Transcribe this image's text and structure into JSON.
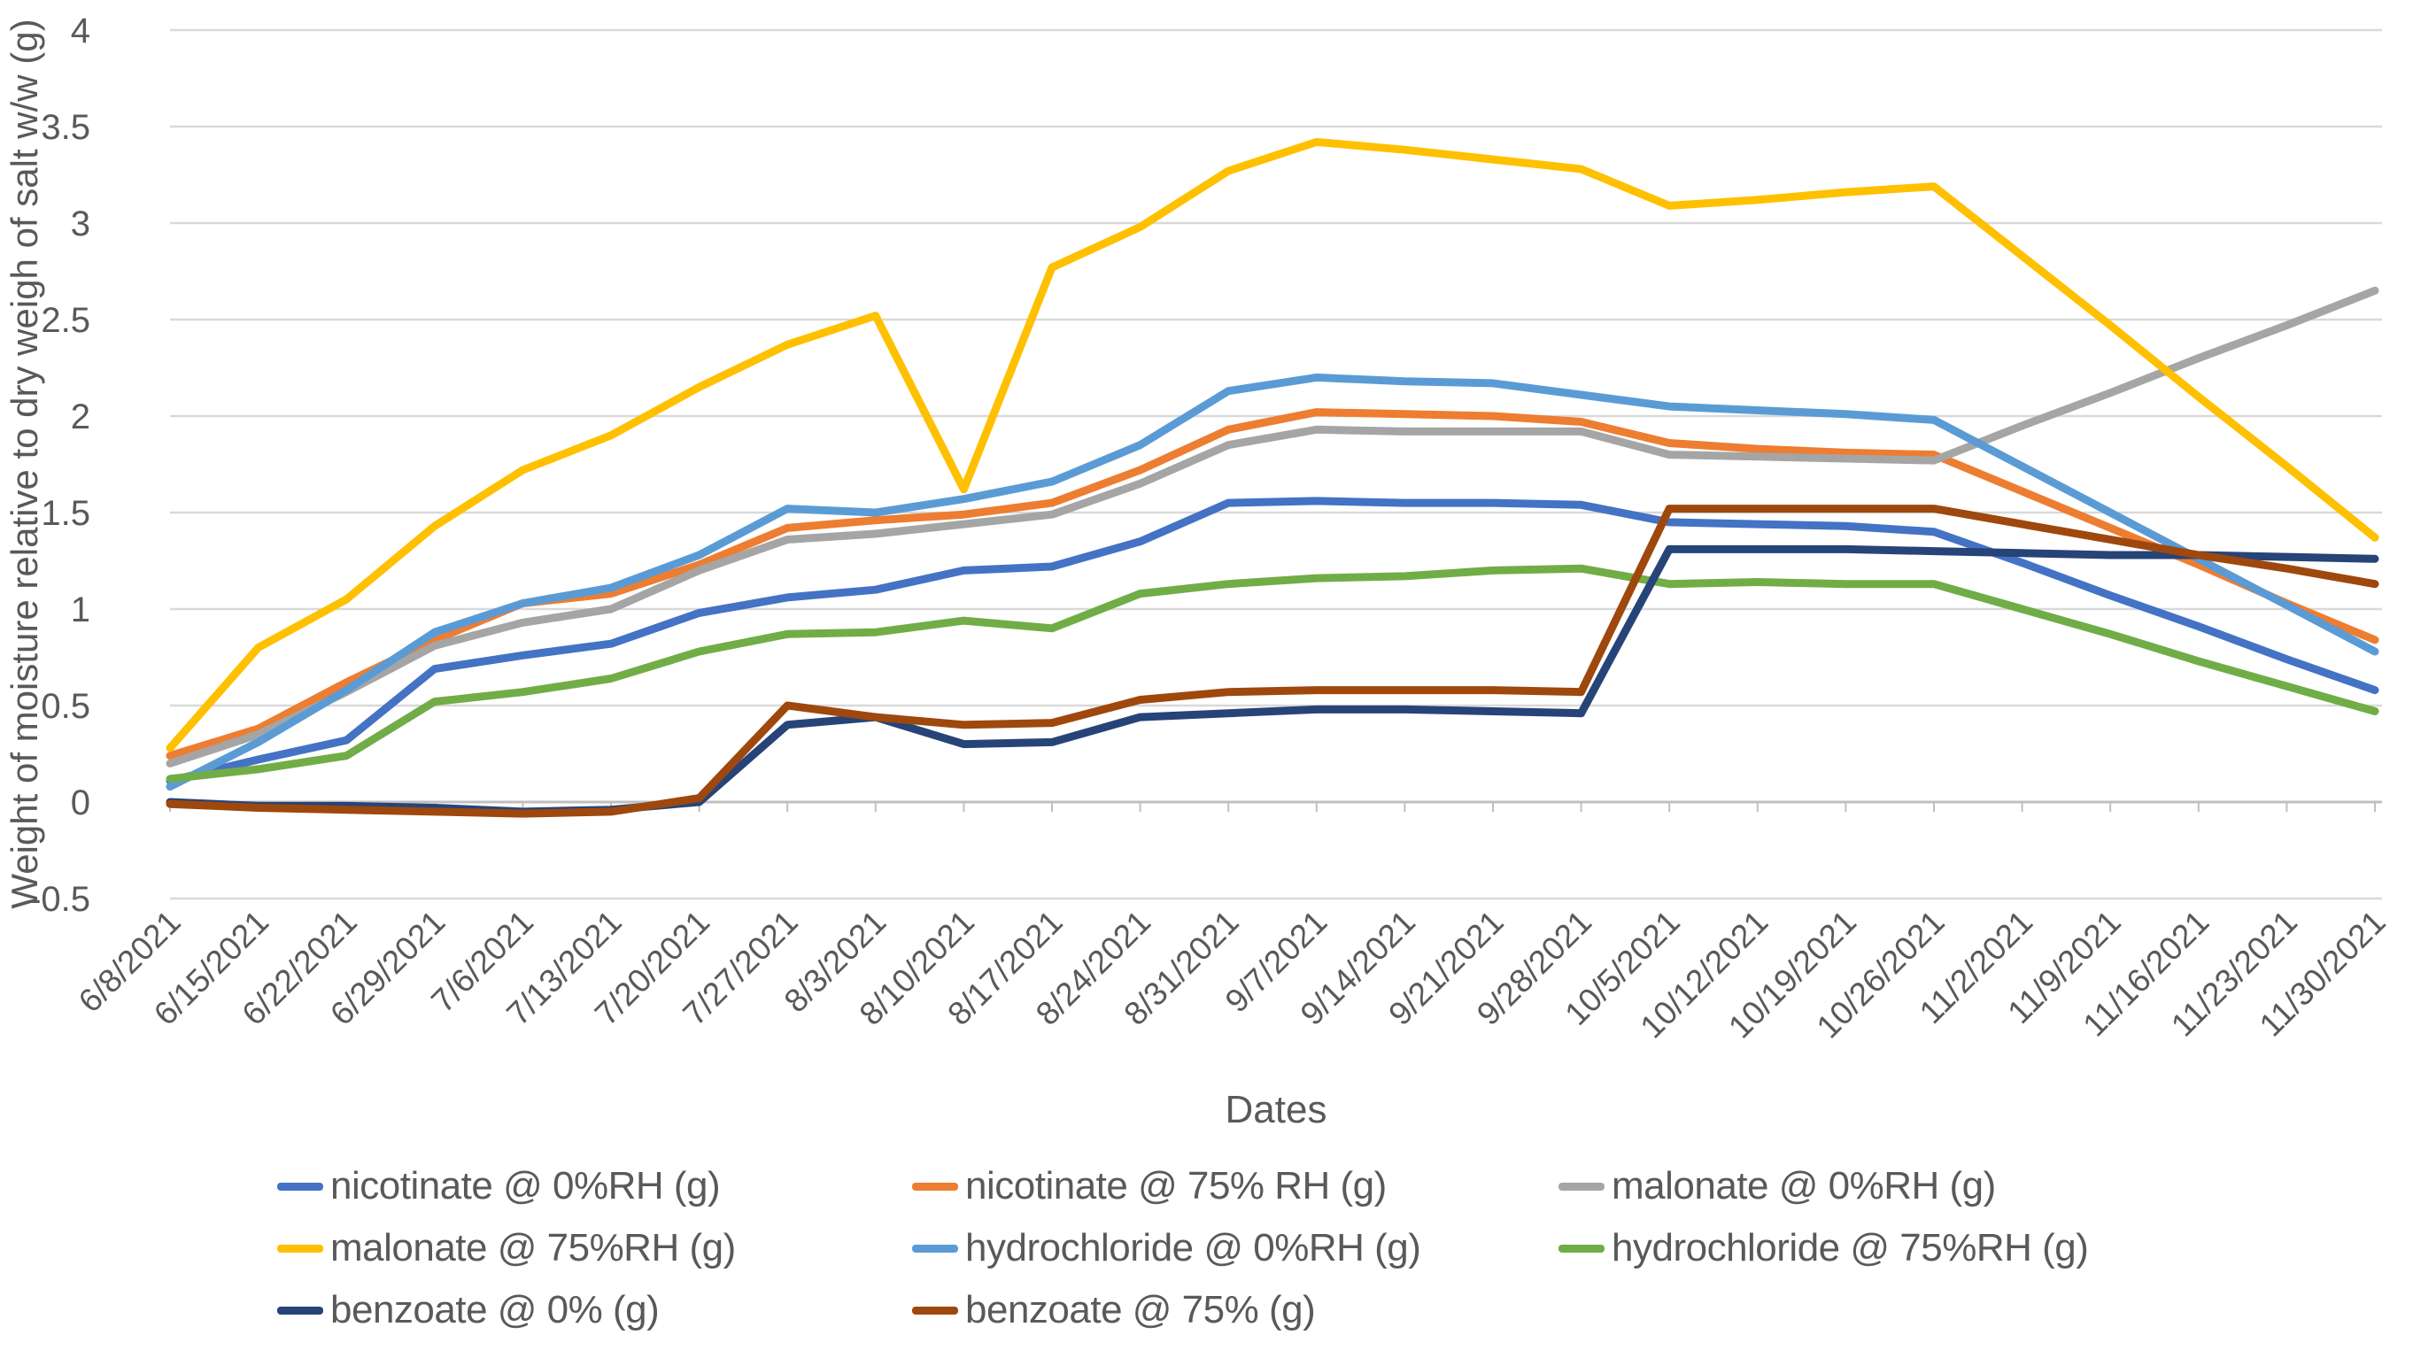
{
  "chart_data": {
    "type": "line",
    "title": "",
    "xlabel": "Dates",
    "ylabel": "Weight of moisture relative to dry weigh of salt w/w (g)",
    "ylim": [
      -0.5,
      4
    ],
    "ytick_step": 0.5,
    "ytick_labels": [
      "4",
      "3.5",
      "3",
      "2.5",
      "2",
      "1.5",
      "1",
      "0.5",
      "0",
      "-0.5"
    ],
    "grid": "horizontal",
    "legend_position": "bottom",
    "x": [
      "6/8/2021",
      "6/15/2021",
      "6/22/2021",
      "6/29/2021",
      "7/6/2021",
      "7/13/2021",
      "7/20/2021",
      "7/27/2021",
      "8/3/2021",
      "8/10/2021",
      "8/17/2021",
      "8/24/2021",
      "8/31/2021",
      "9/7/2021",
      "9/14/2021",
      "9/21/2021",
      "9/28/2021",
      "10/5/2021",
      "10/12/2021",
      "10/19/2021",
      "10/26/2021",
      "11/2/2021",
      "11/9/2021",
      "11/16/2021",
      "11/23/2021",
      "11/30/2021"
    ],
    "series": [
      {
        "name": "nicotinate @ 0%RH (g)",
        "color": "#4472C4",
        "values": [
          0.11,
          0.22,
          0.32,
          0.69,
          0.76,
          0.82,
          0.98,
          1.06,
          1.1,
          1.2,
          1.22,
          1.35,
          1.55,
          1.56,
          1.55,
          1.55,
          1.54,
          1.45,
          1.44,
          1.43,
          1.4,
          1.24,
          1.07,
          0.91,
          0.74,
          0.58
        ]
      },
      {
        "name": "nicotinate  @ 75% RH (g)",
        "color": "#ED7D31",
        "values": [
          0.24,
          0.38,
          0.62,
          0.84,
          1.03,
          1.08,
          1.23,
          1.42,
          1.46,
          1.49,
          1.55,
          1.72,
          1.93,
          2.02,
          2.01,
          2.0,
          1.97,
          1.86,
          1.83,
          1.81,
          1.8,
          1.61,
          1.42,
          1.23,
          1.03,
          0.84
        ]
      },
      {
        "name": "malonate @ 0%RH (g)",
        "color": "#A5A5A5",
        "values": [
          0.2,
          0.35,
          0.57,
          0.81,
          0.93,
          1.0,
          1.2,
          1.36,
          1.39,
          1.44,
          1.49,
          1.65,
          1.85,
          1.93,
          1.92,
          1.92,
          1.92,
          1.8,
          1.79,
          1.78,
          1.77,
          1.95,
          2.12,
          2.3,
          2.47,
          2.65
        ]
      },
      {
        "name": "malonate @ 75%RH (g)",
        "color": "#FFC000",
        "values": [
          0.28,
          0.8,
          1.05,
          1.43,
          1.72,
          1.9,
          2.15,
          2.37,
          2.52,
          1.62,
          2.77,
          2.98,
          3.27,
          3.42,
          3.38,
          3.33,
          3.28,
          3.09,
          3.12,
          3.16,
          3.19,
          2.83,
          2.47,
          2.1,
          1.74,
          1.37
        ]
      },
      {
        "name": "hydrochloride @ 0%RH  (g)",
        "color": "#5B9BD5",
        "values": [
          0.08,
          0.31,
          0.58,
          0.88,
          1.03,
          1.11,
          1.28,
          1.52,
          1.5,
          1.57,
          1.66,
          1.85,
          2.13,
          2.2,
          2.18,
          2.17,
          2.11,
          2.05,
          2.03,
          2.01,
          1.98,
          1.74,
          1.5,
          1.26,
          1.02,
          0.78
        ]
      },
      {
        "name": "hydrochloride @ 75%RH (g)",
        "color": "#70AD47",
        "values": [
          0.12,
          0.17,
          0.24,
          0.52,
          0.57,
          0.64,
          0.78,
          0.87,
          0.88,
          0.94,
          0.9,
          1.08,
          1.13,
          1.16,
          1.17,
          1.2,
          1.21,
          1.13,
          1.14,
          1.13,
          1.13,
          1.0,
          0.87,
          0.73,
          0.6,
          0.47
        ]
      },
      {
        "name": "benzoate @ 0% (g)",
        "color": "#264478",
        "values": [
          0.0,
          -0.02,
          -0.02,
          -0.03,
          -0.05,
          -0.04,
          0.0,
          0.4,
          0.44,
          0.3,
          0.31,
          0.44,
          0.46,
          0.48,
          0.48,
          0.47,
          0.46,
          1.31,
          1.31,
          1.31,
          1.3,
          1.29,
          1.28,
          1.28,
          1.27,
          1.26
        ]
      },
      {
        "name": "benzoate @ 75% (g)",
        "color": "#9E480E",
        "values": [
          -0.01,
          -0.03,
          -0.04,
          -0.05,
          -0.06,
          -0.05,
          0.02,
          0.5,
          0.44,
          0.4,
          0.41,
          0.53,
          0.57,
          0.58,
          0.58,
          0.58,
          0.57,
          1.52,
          1.52,
          1.52,
          1.52,
          1.44,
          1.36,
          1.28,
          1.21,
          1.13
        ]
      }
    ],
    "colors": {
      "gridline": "#D9D9D9",
      "axis_line": "#BFBFBF",
      "tick_text": "#595959",
      "background": "#FFFFFF"
    }
  }
}
